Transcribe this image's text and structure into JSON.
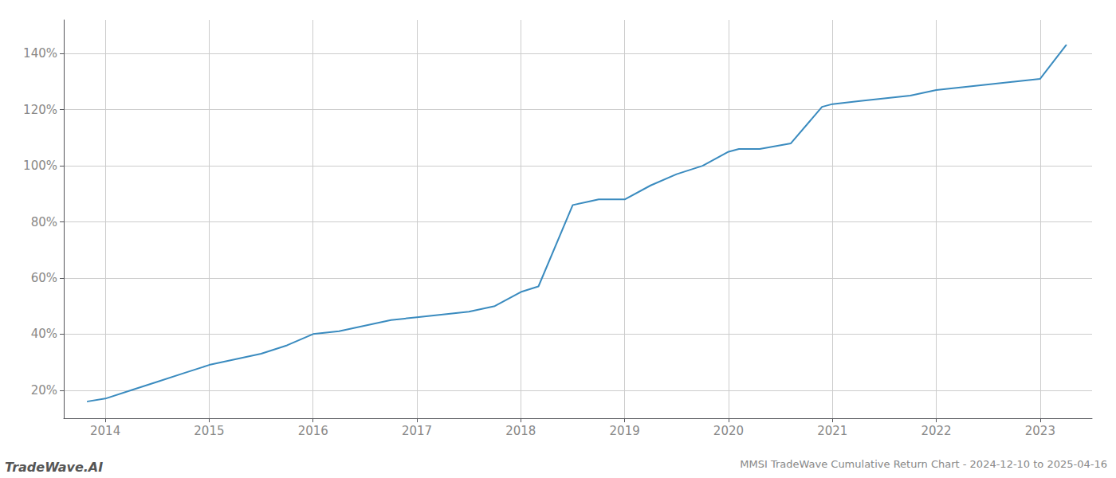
{
  "chart_data": {
    "type": "line",
    "title": "MMSI TradeWave Cumulative Return Chart - 2024-12-10 to 2025-04-16",
    "annotations": [
      "TradeWave.AI"
    ],
    "color": "#3a8bbf",
    "x": [
      2013.83,
      2014.0,
      2014.25,
      2014.5,
      2014.75,
      2015.0,
      2015.25,
      2015.5,
      2015.75,
      2016.0,
      2016.25,
      2016.5,
      2016.75,
      2017.0,
      2017.25,
      2017.5,
      2017.75,
      2018.0,
      2018.17,
      2018.5,
      2018.75,
      2019.0,
      2019.25,
      2019.5,
      2019.75,
      2020.0,
      2020.1,
      2020.3,
      2020.6,
      2020.9,
      2021.0,
      2021.25,
      2021.5,
      2021.75,
      2022.0,
      2022.25,
      2022.5,
      2022.75,
      2023.0,
      2023.25
    ],
    "values": [
      16,
      17,
      20,
      23,
      26,
      29,
      31,
      33,
      36,
      40,
      41,
      43,
      45,
      46,
      47,
      48,
      50,
      55,
      57,
      86,
      88,
      88,
      93,
      97,
      100,
      105,
      106,
      106,
      108,
      121,
      122,
      123,
      124,
      125,
      127,
      128,
      129,
      130,
      131,
      143
    ],
    "xlim": [
      2013.6,
      2023.5
    ],
    "xticks": [
      2014,
      2015,
      2016,
      2017,
      2018,
      2019,
      2020,
      2021,
      2022,
      2023
    ],
    "ylim": [
      10,
      152
    ],
    "yticks": [
      {
        "value": 20,
        "label": "20%"
      },
      {
        "value": 40,
        "label": "40%"
      },
      {
        "value": 60,
        "label": "60%"
      },
      {
        "value": 80,
        "label": "80%"
      },
      {
        "value": 100,
        "label": "100%"
      },
      {
        "value": 120,
        "label": "120%"
      },
      {
        "value": 140,
        "label": "140%"
      }
    ],
    "grid": true
  }
}
